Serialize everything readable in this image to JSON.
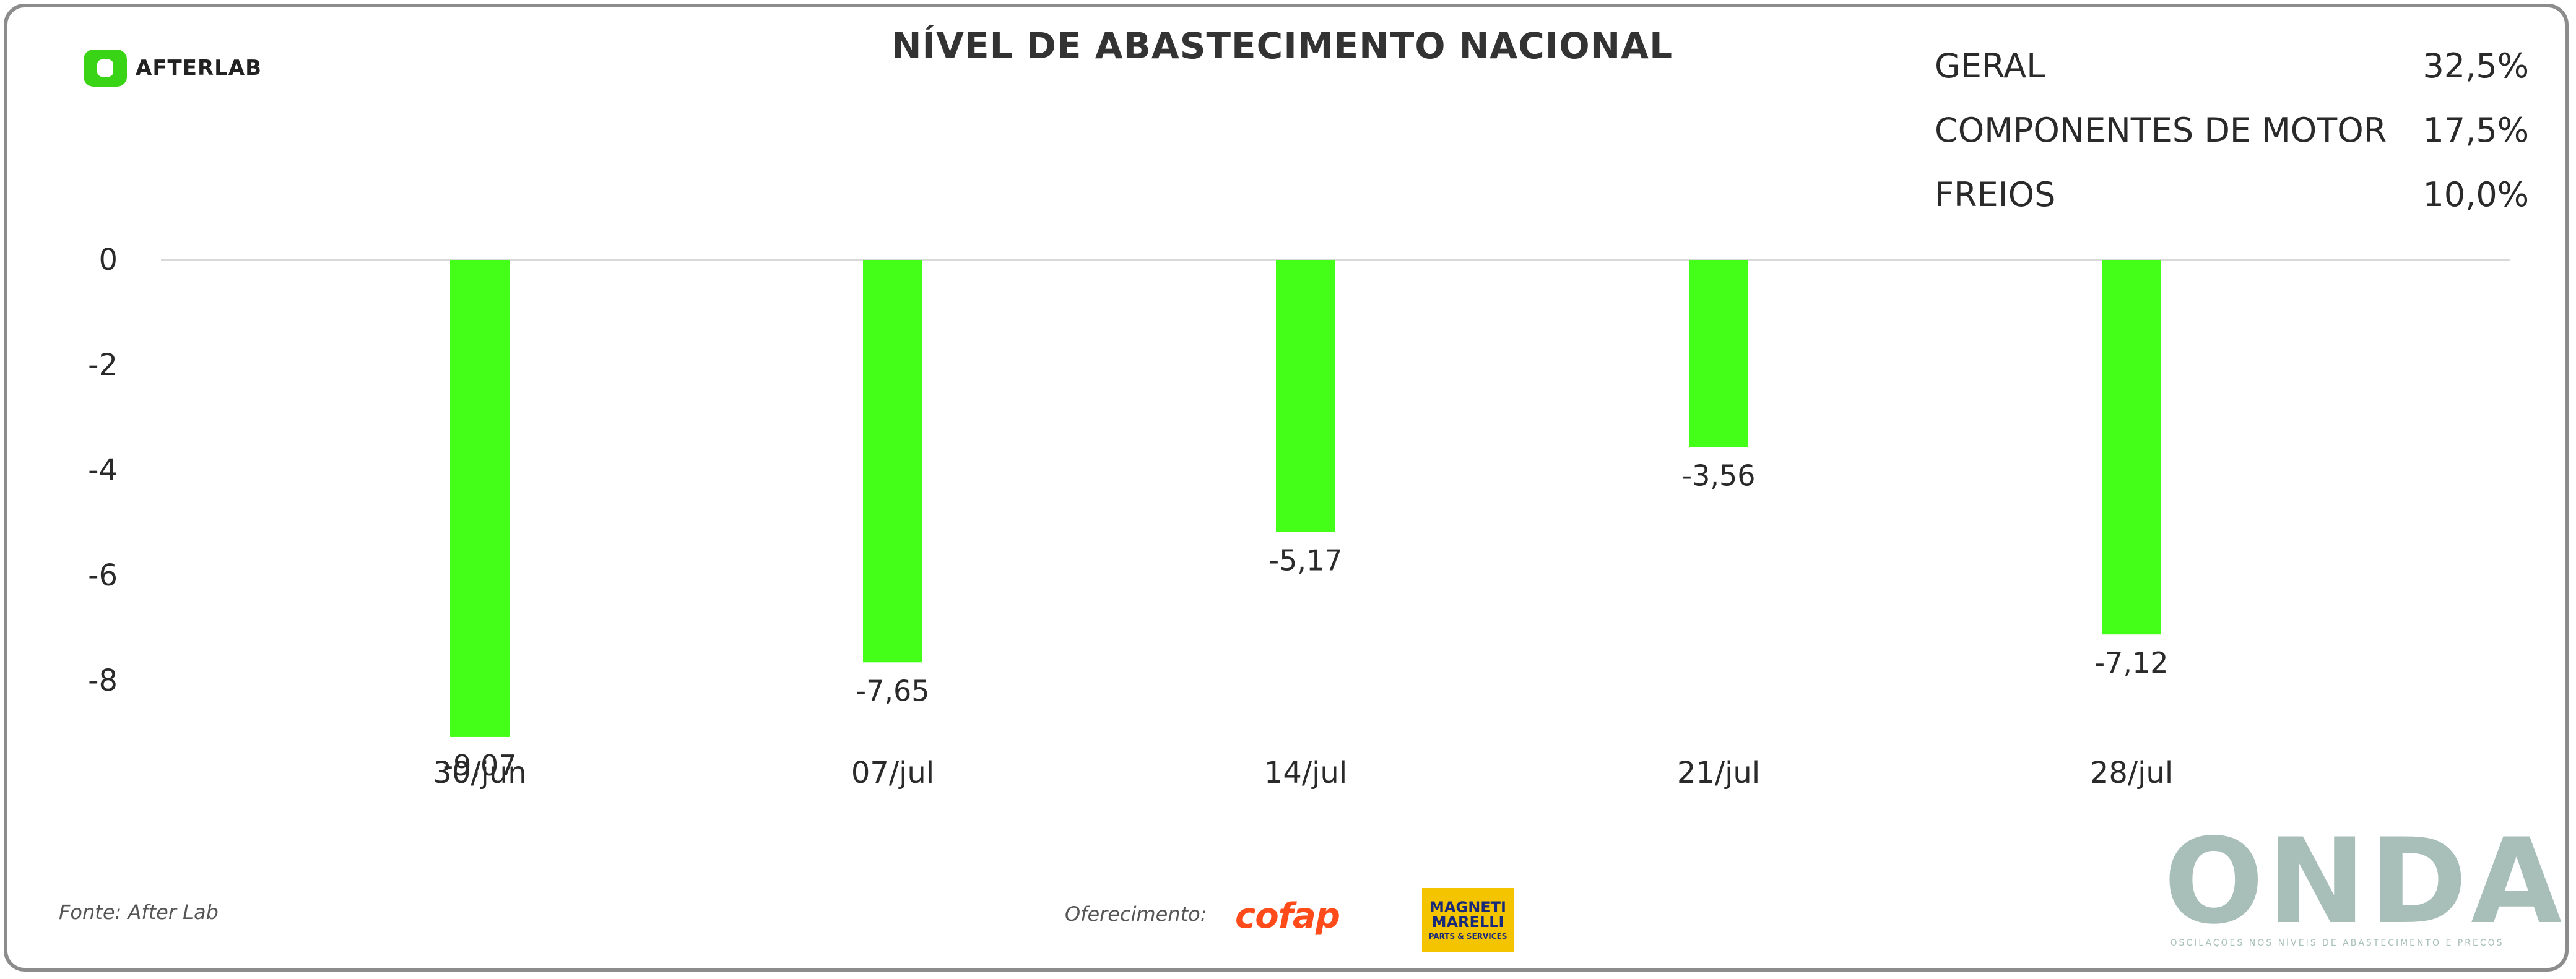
{
  "header": {
    "logo_text": "AFTERLAB",
    "title": "NÍVEL DE ABASTECIMENTO NACIONAL"
  },
  "legend": [
    {
      "label": "GERAL",
      "value": "32,5%"
    },
    {
      "label": "COMPONENTES DE MOTOR",
      "value": "17,5%"
    },
    {
      "label": "FREIOS",
      "value": "10,0%"
    }
  ],
  "chart_data": {
    "type": "bar",
    "categories": [
      "30/jun",
      "07/jul",
      "14/jul",
      "21/jul",
      "28/jul"
    ],
    "values": [
      -9.07,
      -7.65,
      -5.17,
      -3.56,
      -7.12
    ],
    "value_labels": [
      "-9,07",
      "-7,65",
      "-5,17",
      "-3,56",
      "-7,12"
    ],
    "y_ticks": [
      0,
      -2,
      -4,
      -6,
      -8
    ],
    "ylim": [
      -8,
      0
    ],
    "title": "NÍVEL DE ABASTECIMENTO NACIONAL",
    "xlabel": "",
    "ylabel": "",
    "bar_color": "#44ff17",
    "grid": false
  },
  "footer": {
    "source": "Fonte: After Lab",
    "sponsor_label": "Oferecimento:",
    "cofap_logo": "cofap",
    "magneti_logo": "MAGNETI MARELLI",
    "magneti_sub": "PARTS & SERVICES",
    "onda_logo": "ONDA",
    "onda_tagline": "OSCILAÇÕES NOS NÍVEIS DE ABASTECIMENTO E PREÇOS"
  },
  "colors": {
    "bar": "#44ff17",
    "axis_line": "#d9d9d9",
    "text": "#2a2a2a",
    "onda": "#a8bfb9"
  }
}
